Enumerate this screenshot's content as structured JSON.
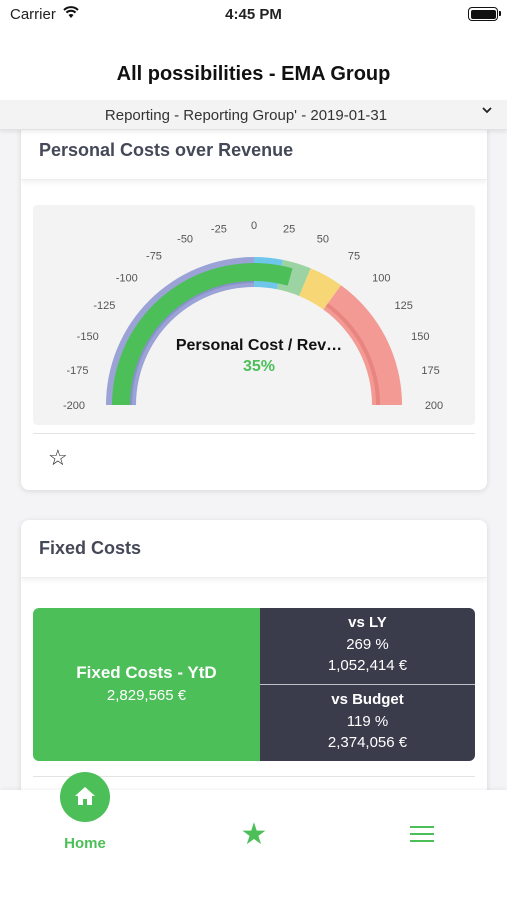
{
  "status_bar": {
    "carrier": "Carrier",
    "time": "4:45 PM"
  },
  "header": {
    "title": "All possibilities - EMA Group"
  },
  "report_selector": {
    "label": "Reporting - Reporting Group' - 2019-01-31"
  },
  "gauge_card": {
    "title": "Personal Costs over Revenue",
    "gauge": {
      "label": "Personal Cost / Rev…",
      "value_text": "35%",
      "value": 35,
      "min": -200,
      "max": 200,
      "ticks": [
        "-200",
        "-175",
        "-150",
        "-125",
        "-100",
        "-75",
        "-50",
        "-25",
        "0",
        "25",
        "50",
        "75",
        "100",
        "125",
        "150",
        "175",
        "200"
      ],
      "colors": {
        "outer_band": "#9ba3d6",
        "progress": "#4cbf58",
        "zone_blue": "#6ec6ea",
        "zone_green": "#9bd3a2",
        "zone_yellow": "#f6d675",
        "zone_red": "#f49a94"
      }
    }
  },
  "fixed_card": {
    "title": "Fixed Costs",
    "kpi": {
      "left_label": "Fixed Costs - YtD",
      "left_value": "2,829,565 €",
      "vs_ly_label": "vs LY",
      "vs_ly_percent": "269 %",
      "vs_ly_value": "1,052,414 €",
      "vs_budget_label": "vs Budget",
      "vs_budget_percent": "119 %",
      "vs_budget_value": "2,374,056 €"
    }
  },
  "tab_bar": {
    "home_label": "Home"
  },
  "colors": {
    "accent": "#4cbf58",
    "dark_panel": "#3a3c4c"
  }
}
